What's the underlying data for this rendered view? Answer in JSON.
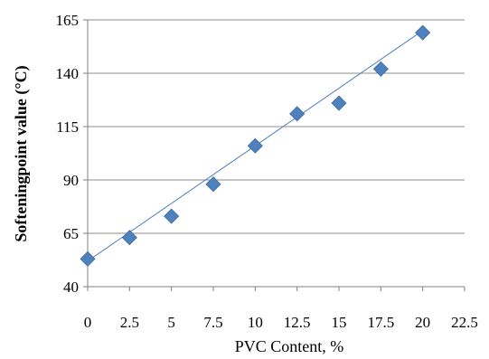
{
  "chart_data": {
    "type": "scatter",
    "title": "",
    "xlabel": "PVC Content, %",
    "ylabel": "Softeningpoint value (°C)",
    "xlim": [
      0,
      22.5
    ],
    "ylim": [
      40,
      165
    ],
    "xticks": [
      "0",
      "2.5",
      "5",
      "7.5",
      "10",
      "12.5",
      "15",
      "17.5",
      "20",
      "22.5"
    ],
    "yticks": [
      "40",
      "65",
      "90",
      "115",
      "140",
      "165"
    ],
    "grid": "horizontal",
    "legend": "none",
    "series": [
      {
        "x": [
          0,
          2.5,
          5,
          7.5,
          10,
          12.5,
          15,
          17.5,
          20
        ],
        "y": [
          53,
          63,
          73,
          88,
          106,
          121,
          126,
          142,
          159
        ]
      }
    ],
    "trendline": {
      "type": "linear",
      "x_start": 0,
      "y_start": 52,
      "x_end": 20,
      "y_end": 160
    },
    "colors": {
      "marker": "#4f81bd",
      "trendline": "#4f81bd",
      "grid": "#8c8c8c",
      "axis": "#808080"
    }
  }
}
